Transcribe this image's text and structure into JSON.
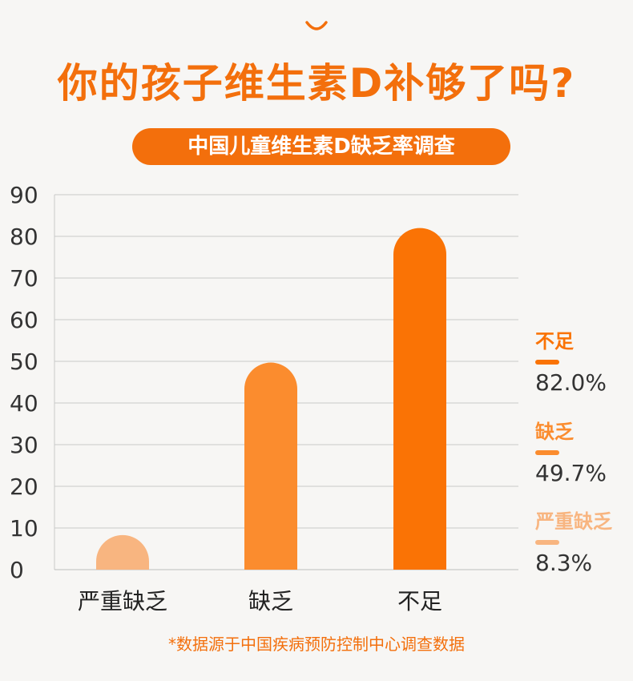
{
  "title": "你的孩子维生素D补够了吗?",
  "subtitle": "中国儿童维生素D缺乏率调查",
  "footnote": "*数据源于中国疾病预防控制中心调查数据",
  "colors": {
    "accent": "#f36f0c",
    "severe": "#f8b580",
    "deficient": "#fb8c2e",
    "insufficient": "#fa7305"
  },
  "legend": [
    {
      "name": "不足",
      "value": "82.0%",
      "color": "#fa7305"
    },
    {
      "name": "缺乏",
      "value": "49.7%",
      "color": "#fb8c2e"
    },
    {
      "name": "严重缺乏",
      "value": "8.3%",
      "color": "#f8b580"
    }
  ],
  "chart_data": {
    "type": "bar",
    "categories": [
      "严重缺乏",
      "缺乏",
      "不足"
    ],
    "values": [
      8.3,
      49.7,
      82.0
    ],
    "colors": [
      "#f8b580",
      "#fb8c2e",
      "#fa7305"
    ],
    "yticks": [
      0,
      10,
      20,
      30,
      40,
      50,
      60,
      70,
      80,
      90
    ],
    "ylim": [
      0,
      90
    ],
    "grid": true,
    "legend_position": "right"
  }
}
